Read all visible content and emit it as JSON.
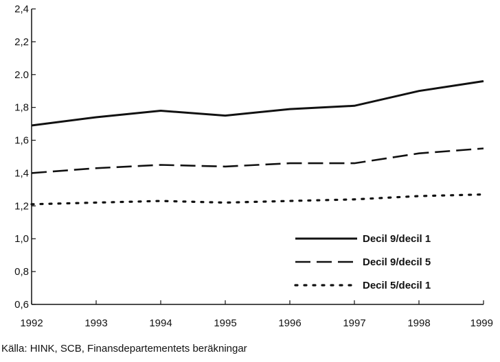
{
  "chart_data": {
    "type": "line",
    "title": "",
    "xlabel": "",
    "ylabel": "",
    "x": [
      1992,
      1993,
      1994,
      1995,
      1996,
      1997,
      1998,
      1999
    ],
    "x_tick_labels": [
      "1992",
      "1993",
      "1994",
      "1995",
      "1996",
      "1997",
      "1998",
      "1999"
    ],
    "ylim": [
      0.6,
      2.4
    ],
    "y_ticks": [
      0.6,
      0.8,
      1.0,
      1.2,
      1.4,
      1.6,
      1.8,
      2.0,
      2.2,
      2.4
    ],
    "y_tick_labels": [
      "0,6",
      "0,8",
      "1,0",
      "1,2",
      "1,4",
      "1,6",
      "1,8",
      "2.0",
      "2,2",
      "2,4"
    ],
    "grid": false,
    "legend_position": "bottom-right",
    "series": [
      {
        "name": "Decil 9/decil 1",
        "style": "solid",
        "color": "#111111",
        "values": [
          1.69,
          1.74,
          1.78,
          1.75,
          1.79,
          1.81,
          1.9,
          1.96
        ]
      },
      {
        "name": "Decil 9/decil 5",
        "style": "dashed",
        "color": "#111111",
        "values": [
          1.4,
          1.43,
          1.45,
          1.44,
          1.46,
          1.46,
          1.52,
          1.55
        ]
      },
      {
        "name": "Decil 5/decil 1",
        "style": "dotted",
        "color": "#111111",
        "values": [
          1.21,
          1.22,
          1.23,
          1.22,
          1.23,
          1.24,
          1.26,
          1.27
        ]
      }
    ],
    "source": "Källa: HINK, SCB, Finansdepartementets beräkningar"
  }
}
